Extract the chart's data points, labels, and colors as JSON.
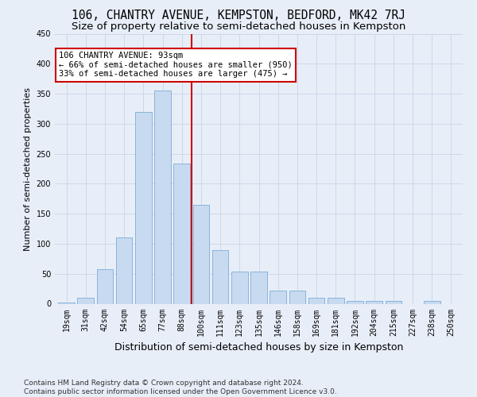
{
  "title": "106, CHANTRY AVENUE, KEMPSTON, BEDFORD, MK42 7RJ",
  "subtitle": "Size of property relative to semi-detached houses in Kempston",
  "xlabel": "Distribution of semi-detached houses by size in Kempston",
  "ylabel": "Number of semi-detached properties",
  "categories": [
    "19sqm",
    "31sqm",
    "42sqm",
    "54sqm",
    "65sqm",
    "77sqm",
    "88sqm",
    "100sqm",
    "111sqm",
    "123sqm",
    "135sqm",
    "146sqm",
    "158sqm",
    "169sqm",
    "181sqm",
    "192sqm",
    "204sqm",
    "215sqm",
    "227sqm",
    "238sqm",
    "250sqm"
  ],
  "bar_heights": [
    2,
    10,
    57,
    110,
    320,
    355,
    233,
    165,
    90,
    53,
    53,
    22,
    22,
    10,
    10,
    5,
    5,
    5,
    0,
    5,
    0
  ],
  "bar_color": "#c8daf0",
  "bar_edge_color": "#7badd6",
  "grid_color": "#c8d4e8",
  "background_color": "#e8eef8",
  "annotation_text_line1": "106 CHANTRY AVENUE: 93sqm",
  "annotation_text_line2": "← 66% of semi-detached houses are smaller (950)",
  "annotation_text_line3": "33% of semi-detached houses are larger (475) →",
  "annotation_box_color": "#ffffff",
  "annotation_box_edge_color": "#cc0000",
  "vline_color": "#cc0000",
  "footer_line1": "Contains HM Land Registry data © Crown copyright and database right 2024.",
  "footer_line2": "Contains public sector information licensed under the Open Government Licence v3.0.",
  "title_fontsize": 10.5,
  "subtitle_fontsize": 9.5,
  "xlabel_fontsize": 9,
  "ylabel_fontsize": 8,
  "tick_fontsize": 7,
  "annotation_fontsize": 7.5,
  "footer_fontsize": 6.5,
  "ylim": [
    0,
    450
  ],
  "yticks": [
    0,
    50,
    100,
    150,
    200,
    250,
    300,
    350,
    400,
    450
  ]
}
